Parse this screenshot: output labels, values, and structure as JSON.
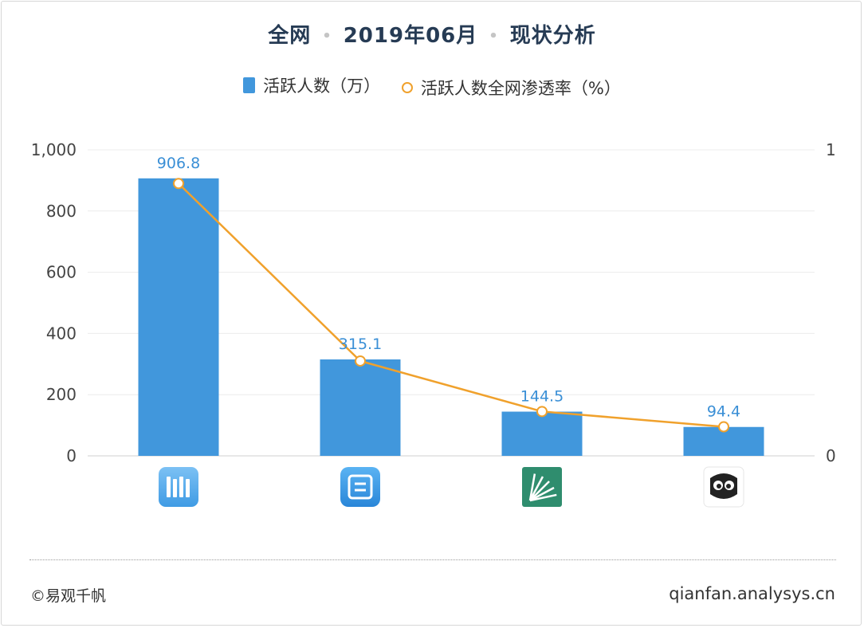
{
  "title": {
    "part1": "全网",
    "part2": "2019年06月",
    "part3": "现状分析",
    "separator": "•"
  },
  "legend": {
    "bar_label": "活跃人数（万）",
    "line_label": "活跃人数全网渗透率（%）"
  },
  "footer": {
    "copyright": "©易观千帆",
    "site": "qianfan.analysys.cn"
  },
  "colors": {
    "bar": "#4197dc",
    "line": "#f0a12c",
    "label": "#3a8fd6"
  },
  "chart_data": {
    "type": "bar",
    "categories": [
      "app-icon-1",
      "app-icon-2",
      "app-icon-3",
      "app-icon-4"
    ],
    "series": [
      {
        "name": "活跃人数（万）",
        "type": "bar",
        "values": [
          906.8,
          315.1,
          144.5,
          94.4
        ],
        "axis": "left"
      },
      {
        "name": "活跃人数全网渗透率（%）",
        "type": "line",
        "values": [
          0.89,
          0.31,
          0.145,
          0.095
        ],
        "axis": "right"
      }
    ],
    "y_left": {
      "min": 0,
      "max": 1000,
      "ticks": [
        "0",
        "200",
        "400",
        "600",
        "800",
        "1,000"
      ],
      "tick_values": [
        0,
        200,
        400,
        600,
        800,
        1000
      ]
    },
    "y_right": {
      "min": 0,
      "max": 1,
      "ticks": [
        "0",
        "1"
      ],
      "tick_values": [
        0,
        1
      ]
    },
    "data_labels": [
      "906.8",
      "315.1",
      "144.5",
      "94.4"
    ],
    "grid": true,
    "legend_position": "top-center"
  }
}
